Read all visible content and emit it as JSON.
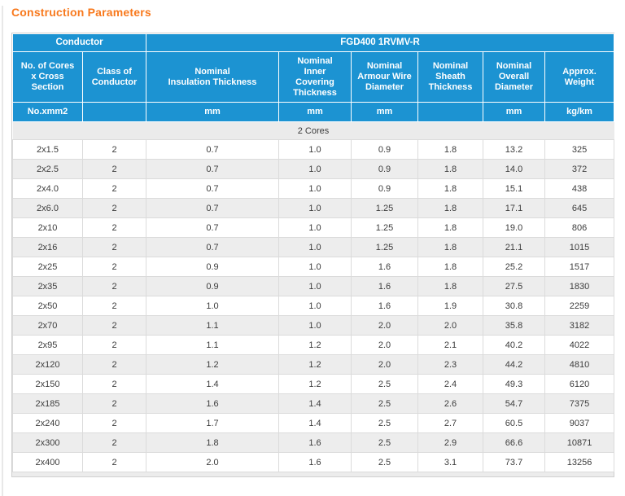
{
  "page": {
    "title": "Construction Parameters"
  },
  "colors": {
    "title_orange": "#F8791D",
    "header_blue": "#1C93D2",
    "alt_row_gray": "#EDEDED",
    "section_row_gray": "#EBEBEB",
    "border_gray": "#DBDBDB",
    "text_dark": "#3C3C3C"
  },
  "table": {
    "group_headers": [
      {
        "label": "Conductor"
      },
      {
        "label": "FGD400 1RVMV-R"
      }
    ],
    "columns": [
      {
        "label": "No. of Cores\nx Cross\nSection",
        "unit": "No.xmm2"
      },
      {
        "label": "Class of\nConductor",
        "unit": ""
      },
      {
        "label": "Nominal\nInsulation Thickness",
        "unit": "mm"
      },
      {
        "label": "Nominal\nInner\nCovering\nThickness",
        "unit": "mm"
      },
      {
        "label": "Nominal\nArmour Wire\nDiameter",
        "unit": "mm"
      },
      {
        "label": "Nominal\nSheath\nThickness",
        "unit": ""
      },
      {
        "label": "Nominal\nOverall\nDiameter",
        "unit": "mm"
      },
      {
        "label": "Approx.\nWeight",
        "unit": "kg/km"
      }
    ],
    "section_label": "2 Cores",
    "rows": [
      [
        "2x1.5",
        "2",
        "0.7",
        "1.0",
        "0.9",
        "1.8",
        "13.2",
        "325"
      ],
      [
        "2x2.5",
        "2",
        "0.7",
        "1.0",
        "0.9",
        "1.8",
        "14.0",
        "372"
      ],
      [
        "2x4.0",
        "2",
        "0.7",
        "1.0",
        "0.9",
        "1.8",
        "15.1",
        "438"
      ],
      [
        "2x6.0",
        "2",
        "0.7",
        "1.0",
        "1.25",
        "1.8",
        "17.1",
        "645"
      ],
      [
        "2x10",
        "2",
        "0.7",
        "1.0",
        "1.25",
        "1.8",
        "19.0",
        "806"
      ],
      [
        "2x16",
        "2",
        "0.7",
        "1.0",
        "1.25",
        "1.8",
        "21.1",
        "1015"
      ],
      [
        "2x25",
        "2",
        "0.9",
        "1.0",
        "1.6",
        "1.8",
        "25.2",
        "1517"
      ],
      [
        "2x35",
        "2",
        "0.9",
        "1.0",
        "1.6",
        "1.8",
        "27.5",
        "1830"
      ],
      [
        "2x50",
        "2",
        "1.0",
        "1.0",
        "1.6",
        "1.9",
        "30.8",
        "2259"
      ],
      [
        "2x70",
        "2",
        "1.1",
        "1.0",
        "2.0",
        "2.0",
        "35.8",
        "3182"
      ],
      [
        "2x95",
        "2",
        "1.1",
        "1.2",
        "2.0",
        "2.1",
        "40.2",
        "4022"
      ],
      [
        "2x120",
        "2",
        "1.2",
        "1.2",
        "2.0",
        "2.3",
        "44.2",
        "4810"
      ],
      [
        "2x150",
        "2",
        "1.4",
        "1.2",
        "2.5",
        "2.4",
        "49.3",
        "6120"
      ],
      [
        "2x185",
        "2",
        "1.6",
        "1.4",
        "2.5",
        "2.6",
        "54.7",
        "7375"
      ],
      [
        "2x240",
        "2",
        "1.7",
        "1.4",
        "2.5",
        "2.7",
        "60.5",
        "9037"
      ],
      [
        "2x300",
        "2",
        "1.8",
        "1.6",
        "2.5",
        "2.9",
        "66.6",
        "10871"
      ],
      [
        "2x400",
        "2",
        "2.0",
        "1.6",
        "2.5",
        "3.1",
        "73.7",
        "13256"
      ]
    ]
  }
}
